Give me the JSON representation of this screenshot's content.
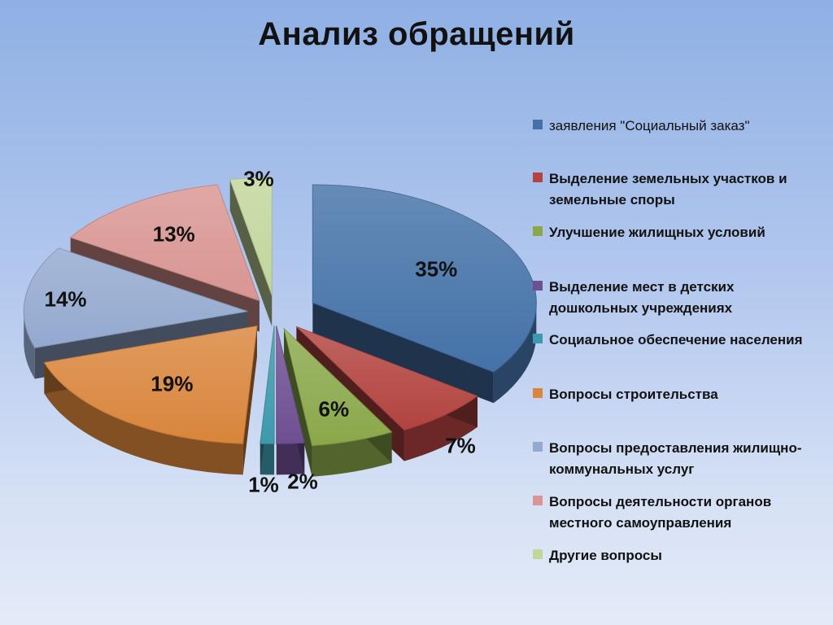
{
  "title": "Анализ обращений",
  "chart_data": {
    "type": "pie",
    "title": "Анализ обращений",
    "legend_position": "right",
    "slices": [
      {
        "label": "заявления \"Социальный заказ\"",
        "value": 35,
        "value_label": "35%",
        "color": "#4472a8"
      },
      {
        "label": "Выделение земельных участков и земельные споры",
        "value": 7,
        "value_label": "7%",
        "color": "#b2433f"
      },
      {
        "label": "Улучшение жилищных условий",
        "value": 6,
        "value_label": "6%",
        "color": "#8aa84a"
      },
      {
        "label": "Выделение мест в детских дошкольных учреждениях",
        "value": 2,
        "value_label": "2%",
        "color": "#6e4f92"
      },
      {
        "label": "Социальное обеспечение населения",
        "value": 1,
        "value_label": "1%",
        "color": "#3d99ab"
      },
      {
        "label": "Вопросы строительства",
        "value": 19,
        "value_label": "19%",
        "color": "#d9853b"
      },
      {
        "label": "Вопросы предоставления жилищно-коммунальных услуг",
        "value": 14,
        "value_label": "14%",
        "color": "#93a9cf"
      },
      {
        "label": "Вопросы деятельности органов местного самоуправления",
        "value": 13,
        "value_label": "13%",
        "color": "#d99592"
      },
      {
        "label": "Другие вопросы",
        "value": 3,
        "value_label": "3%",
        "color": "#c2d69b"
      }
    ]
  }
}
